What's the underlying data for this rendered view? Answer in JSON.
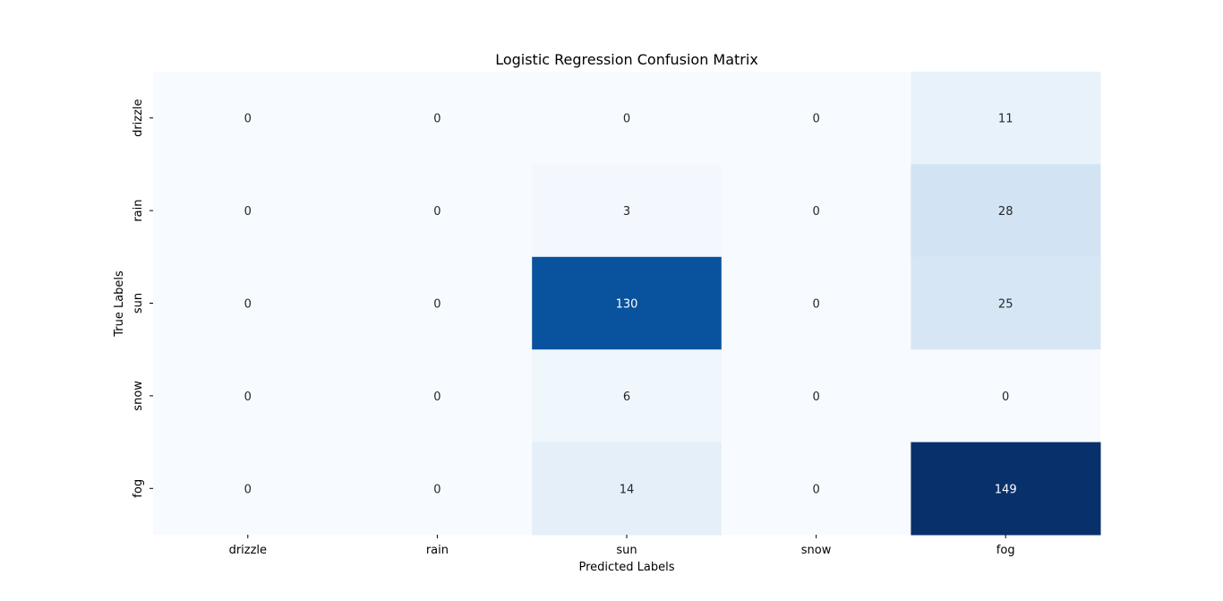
{
  "chart_data": {
    "type": "heatmap",
    "title": "Logistic Regression Confusion Matrix",
    "xlabel": "Predicted Labels",
    "ylabel": "True Labels",
    "x_categories": [
      "drizzle",
      "rain",
      "sun",
      "snow",
      "fog"
    ],
    "y_categories": [
      "drizzle",
      "rain",
      "sun",
      "snow",
      "fog"
    ],
    "values": [
      [
        0,
        0,
        0,
        0,
        11
      ],
      [
        0,
        0,
        3,
        0,
        28
      ],
      [
        0,
        0,
        130,
        0,
        25
      ],
      [
        0,
        0,
        6,
        0,
        0
      ],
      [
        0,
        0,
        14,
        0,
        149
      ]
    ],
    "colormap": "Blues",
    "vmin": 0,
    "vmax": 149,
    "colorbar": false,
    "grid": false
  }
}
